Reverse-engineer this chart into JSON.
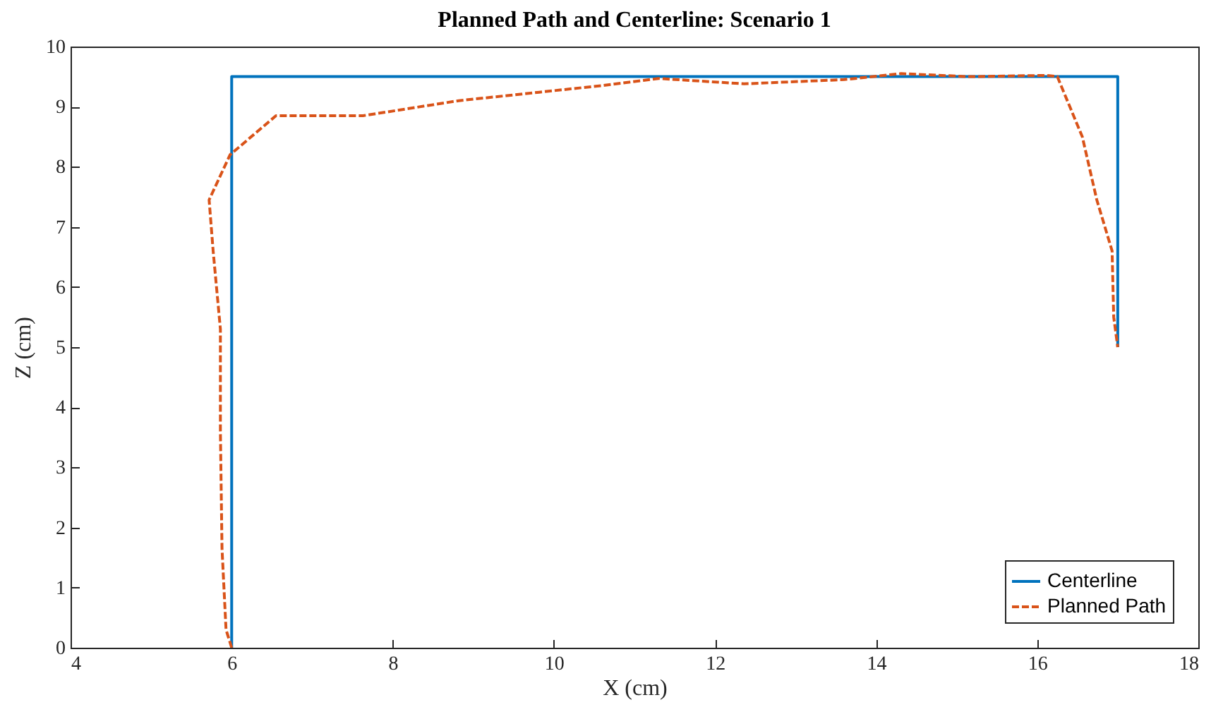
{
  "chart_data": {
    "type": "line",
    "title": "Planned Path and Centerline: Scenario 1",
    "xlabel": "X (cm)",
    "ylabel": "Z (cm)",
    "xlim": [
      4,
      18
    ],
    "xticks": [
      4,
      6,
      8,
      10,
      12,
      14,
      16,
      18
    ],
    "ylim": [
      0,
      10
    ],
    "yticks": [
      0,
      1,
      2,
      3,
      4,
      5,
      6,
      7,
      8,
      9,
      10
    ],
    "grid": false,
    "legend": "bottom right",
    "marker": "none",
    "series": [
      {
        "name": "Centerline",
        "color": "#0072bd",
        "line_style": "solid",
        "x": [
          6,
          6,
          17,
          17
        ],
        "values": [
          0,
          9.5,
          9.5,
          5
        ]
      },
      {
        "name": "Planned Path",
        "color": "#d95319",
        "line_style": "dashed",
        "x": [
          6.0,
          5.93,
          5.88,
          5.86,
          5.86,
          5.77,
          5.72,
          5.98,
          6.55,
          7.63,
          8.82,
          10.59,
          11.3,
          12.36,
          13.6,
          14.31,
          15.14,
          16.12,
          16.25,
          16.56,
          16.74,
          16.93,
          16.95,
          17.0
        ],
        "values": [
          0,
          0.3,
          1.65,
          3.6,
          5.3,
          6.6,
          7.45,
          8.2,
          8.85,
          8.85,
          9.1,
          9.35,
          9.47,
          9.38,
          9.45,
          9.55,
          9.5,
          9.52,
          9.5,
          8.5,
          7.45,
          6.6,
          5.5,
          5.0
        ]
      }
    ]
  }
}
